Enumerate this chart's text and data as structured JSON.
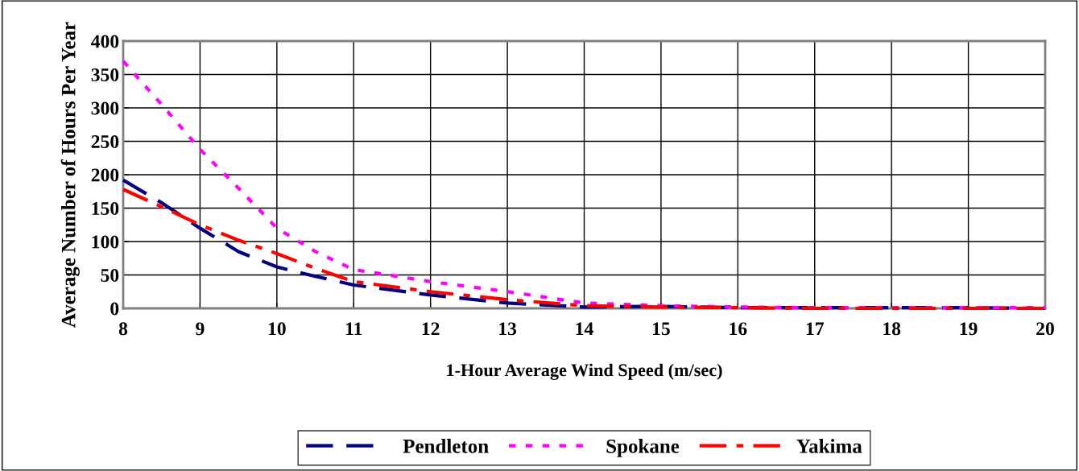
{
  "chart_data": {
    "type": "line",
    "xlabel": "1-Hour Average Wind Speed (m/sec)",
    "ylabel": "Average Number of Hours Per Year",
    "x": [
      8,
      8.5,
      9,
      9.5,
      10,
      10.5,
      11,
      12,
      13,
      14,
      15,
      16,
      17,
      18,
      19,
      20
    ],
    "series": [
      {
        "name": "Pendleton",
        "color": "#000080",
        "line_style": "dashed",
        "values": [
          192,
          158,
          120,
          85,
          62,
          48,
          35,
          20,
          8,
          2,
          3,
          1,
          1,
          1,
          1,
          0
        ]
      },
      {
        "name": "Spokane",
        "color": "#ff00ff",
        "line_style": "dotted",
        "values": [
          370,
          305,
          238,
          180,
          120,
          85,
          58,
          40,
          25,
          8,
          4,
          2,
          1,
          1,
          1,
          1
        ]
      },
      {
        "name": "Yakima",
        "color": "#ff0000",
        "line_style": "dashdot",
        "values": [
          178,
          152,
          125,
          102,
          82,
          60,
          40,
          25,
          13,
          4,
          2,
          1,
          0,
          0,
          0,
          0
        ]
      }
    ],
    "xlim": [
      8,
      20
    ],
    "xticks": [
      8,
      9,
      10,
      11,
      12,
      13,
      14,
      15,
      16,
      17,
      18,
      19,
      20
    ],
    "ylim": [
      0,
      400
    ],
    "yticks": [
      0,
      50,
      100,
      150,
      200,
      250,
      300,
      350,
      400
    ],
    "grid": true,
    "legend": "bottom",
    "marker": "none"
  }
}
